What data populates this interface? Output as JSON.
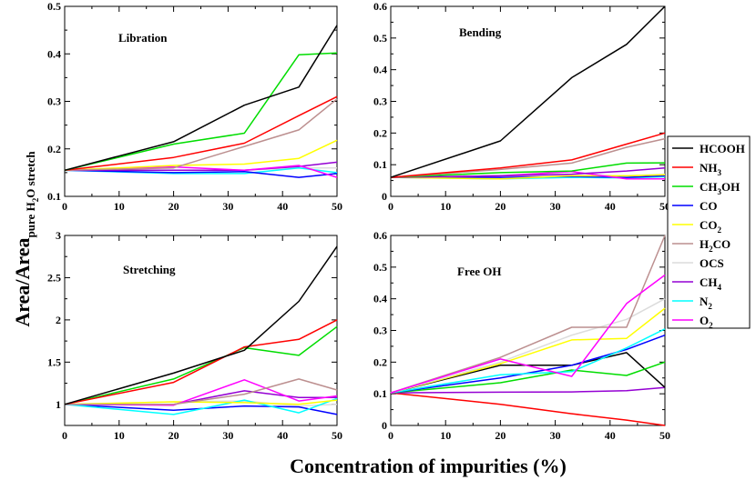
{
  "chart_data": {
    "type": "line",
    "xlabel": "Concentration of impurities  (%)",
    "ylabel": {
      "main": "Area/Area",
      "sub_a": "pure H",
      "sub_b": "2",
      "sub_c": "O stretch"
    },
    "legend": {
      "placement": "right",
      "items": [
        {
          "key": "HCOOH",
          "base": "HCOOH",
          "sub": "",
          "rest": "",
          "color": "#000000"
        },
        {
          "key": "NH3",
          "base": "NH",
          "sub": "3",
          "rest": "",
          "color": "#ff0000"
        },
        {
          "key": "CH3OH",
          "base": "CH",
          "sub": "3",
          "rest": "OH",
          "color": "#00dd00"
        },
        {
          "key": "CO",
          "base": "CO",
          "sub": "",
          "rest": "",
          "color": "#0000ff"
        },
        {
          "key": "CO2",
          "base": "CO",
          "sub": "2",
          "rest": "",
          "color": "#ffff00"
        },
        {
          "key": "H2CO",
          "base": "H",
          "sub": "2",
          "rest": "CO",
          "color": "#bc8f8f"
        },
        {
          "key": "OCS",
          "base": "OCS",
          "sub": "",
          "rest": "",
          "color": "#dcdcdc"
        },
        {
          "key": "CH4",
          "base": "CH",
          "sub": "4",
          "rest": "",
          "color": "#9400d3"
        },
        {
          "key": "N2",
          "base": "N",
          "sub": "2",
          "rest": "",
          "color": "#00ffff"
        },
        {
          "key": "O2",
          "base": "O",
          "sub": "2",
          "rest": "",
          "color": "#ff00ff"
        }
      ]
    },
    "panels": [
      {
        "title": "Libration",
        "xlim": [
          0,
          50
        ],
        "ylim": [
          0.1,
          0.5
        ],
        "xticks": [
          0,
          10,
          20,
          30,
          40,
          50
        ],
        "yticks": [
          0.1,
          0.2,
          0.3,
          0.4,
          0.5
        ],
        "ytick_labels": [
          "0.1",
          "0.2",
          "0.3",
          "0.4",
          "0.5"
        ],
        "series": [
          {
            "name": "OCS",
            "x": [
              0,
              20,
              33,
              43,
              50
            ],
            "y": [
              0.155,
              0.155,
              0.155,
              0.16,
              0.16
            ]
          },
          {
            "name": "N2",
            "x": [
              0,
              20,
              33,
              43,
              50
            ],
            "y": [
              0.155,
              0.148,
              0.148,
              0.16,
              0.15
            ]
          },
          {
            "name": "CO",
            "x": [
              0,
              20,
              33,
              43,
              50
            ],
            "y": [
              0.155,
              0.15,
              0.152,
              0.14,
              0.148
            ]
          },
          {
            "name": "CH4",
            "x": [
              0,
              20,
              33,
              43,
              50
            ],
            "y": [
              0.155,
              0.155,
              0.155,
              0.163,
              0.172
            ]
          },
          {
            "name": "O2",
            "x": [
              0,
              20,
              33,
              43,
              50
            ],
            "y": [
              0.155,
              0.162,
              0.155,
              0.165,
              0.14
            ]
          },
          {
            "name": "CO2",
            "x": [
              0,
              20,
              33,
              43,
              50
            ],
            "y": [
              0.155,
              0.165,
              0.168,
              0.18,
              0.218
            ]
          },
          {
            "name": "H2CO",
            "x": [
              0,
              20,
              33,
              43,
              50
            ],
            "y": [
              0.155,
              0.16,
              0.205,
              0.24,
              0.305
            ]
          },
          {
            "name": "NH3",
            "x": [
              0,
              20,
              33,
              43,
              50
            ],
            "y": [
              0.155,
              0.182,
              0.212,
              0.27,
              0.31
            ]
          },
          {
            "name": "CH3OH",
            "x": [
              0,
              20,
              33,
              43,
              50
            ],
            "y": [
              0.155,
              0.21,
              0.233,
              0.398,
              0.402
            ]
          },
          {
            "name": "HCOOH",
            "x": [
              0,
              20,
              33,
              43,
              50
            ],
            "y": [
              0.155,
              0.215,
              0.292,
              0.33,
              0.46
            ]
          }
        ]
      },
      {
        "title": "Bending",
        "xlim": [
          0,
          50
        ],
        "ylim": [
          0,
          0.6
        ],
        "xticks": [
          0,
          10,
          20,
          30,
          40,
          50
        ],
        "yticks": [
          0,
          0.1,
          0.2,
          0.3,
          0.4,
          0.5,
          0.6
        ],
        "ytick_labels": [
          "0",
          "0.1",
          "0.2",
          "0.3",
          "0.4",
          "0.5",
          "0.6"
        ],
        "series": [
          {
            "name": "N2",
            "x": [
              0,
              20,
              33,
              43,
              50
            ],
            "y": [
              0.06,
              0.055,
              0.06,
              0.058,
              0.062
            ]
          },
          {
            "name": "CO",
            "x": [
              0,
              20,
              33,
              43,
              50
            ],
            "y": [
              0.06,
              0.06,
              0.063,
              0.06,
              0.065
            ]
          },
          {
            "name": "OCS",
            "x": [
              0,
              20,
              33,
              43,
              50
            ],
            "y": [
              0.06,
              0.065,
              0.065,
              0.065,
              0.07
            ]
          },
          {
            "name": "CO2",
            "x": [
              0,
              20,
              33,
              43,
              50
            ],
            "y": [
              0.06,
              0.055,
              0.065,
              0.065,
              0.068
            ]
          },
          {
            "name": "O2",
            "x": [
              0,
              20,
              33,
              43,
              50
            ],
            "y": [
              0.06,
              0.065,
              0.078,
              0.055,
              0.055
            ]
          },
          {
            "name": "CH4",
            "x": [
              0,
              20,
              33,
              43,
              50
            ],
            "y": [
              0.06,
              0.065,
              0.07,
              0.08,
              0.09
            ]
          },
          {
            "name": "CH3OH",
            "x": [
              0,
              20,
              33,
              43,
              50
            ],
            "y": [
              0.06,
              0.075,
              0.08,
              0.105,
              0.106
            ]
          },
          {
            "name": "H2CO",
            "x": [
              0,
              20,
              33,
              43,
              50
            ],
            "y": [
              0.06,
              0.085,
              0.105,
              0.155,
              0.182
            ]
          },
          {
            "name": "NH3",
            "x": [
              0,
              20,
              33,
              43,
              50
            ],
            "y": [
              0.06,
              0.09,
              0.115,
              0.165,
              0.2
            ]
          },
          {
            "name": "HCOOH",
            "x": [
              0,
              20,
              33,
              43,
              50
            ],
            "y": [
              0.06,
              0.175,
              0.375,
              0.48,
              0.6
            ]
          }
        ]
      },
      {
        "title": "Stretching",
        "xlim": [
          0,
          50
        ],
        "ylim": [
          0.75,
          3
        ],
        "xticks": [
          0,
          10,
          20,
          30,
          40,
          50
        ],
        "yticks": [
          1,
          1.5,
          2,
          2.5,
          3
        ],
        "ytick_labels": [
          "1",
          "1.5",
          "2",
          "2.5",
          "3"
        ],
        "series": [
          {
            "name": "OCS",
            "x": [
              0,
              20,
              33,
              43,
              50
            ],
            "y": [
              1,
              1.03,
              1.04,
              0.98,
              1.0
            ]
          },
          {
            "name": "CO",
            "x": [
              0,
              20,
              33,
              43,
              50
            ],
            "y": [
              1,
              0.93,
              0.98,
              0.97,
              0.88
            ]
          },
          {
            "name": "N2",
            "x": [
              0,
              20,
              33,
              43,
              50
            ],
            "y": [
              1,
              0.88,
              1.05,
              0.9,
              1.07
            ]
          },
          {
            "name": "CO2",
            "x": [
              0,
              20,
              33,
              43,
              50
            ],
            "y": [
              1,
              1.03,
              1.02,
              1.0,
              1.05
            ]
          },
          {
            "name": "CH4",
            "x": [
              0,
              20,
              33,
              43,
              50
            ],
            "y": [
              1,
              1.0,
              1.16,
              1.08,
              1.08
            ]
          },
          {
            "name": "O2",
            "x": [
              0,
              20,
              33,
              43,
              50
            ],
            "y": [
              1,
              0.99,
              1.29,
              1.04,
              1.1
            ]
          },
          {
            "name": "H2CO",
            "x": [
              0,
              20,
              33,
              43,
              50
            ],
            "y": [
              1,
              1.0,
              1.12,
              1.3,
              1.17
            ]
          },
          {
            "name": "CH3OH",
            "x": [
              0,
              20,
              33,
              43,
              50
            ],
            "y": [
              1,
              1.3,
              1.67,
              1.58,
              1.92
            ]
          },
          {
            "name": "NH3",
            "x": [
              0,
              20,
              33,
              43,
              50
            ],
            "y": [
              1,
              1.26,
              1.68,
              1.77,
              2.0
            ]
          },
          {
            "name": "HCOOH",
            "x": [
              0,
              20,
              33,
              43,
              50
            ],
            "y": [
              1,
              1.37,
              1.64,
              2.22,
              2.87
            ]
          }
        ]
      },
      {
        "title": "Free OH",
        "xlim": [
          0,
          50
        ],
        "ylim": [
          0,
          0.6
        ],
        "xticks": [
          0,
          10,
          20,
          30,
          40,
          50
        ],
        "yticks": [
          0,
          0.1,
          0.2,
          0.3,
          0.4,
          0.5,
          0.6
        ],
        "ytick_labels": [
          "0",
          "0.1",
          "0.2",
          "0.3",
          "0.4",
          "0.5",
          "0.6"
        ],
        "series": [
          {
            "name": "NH3",
            "x": [
              0,
              20,
              33,
              43,
              50
            ],
            "y": [
              0.103,
              0.067,
              0.037,
              0.017,
              0.0
            ]
          },
          {
            "name": "CH4",
            "x": [
              0,
              20,
              33,
              43,
              50
            ],
            "y": [
              0.103,
              0.105,
              0.106,
              0.11,
              0.12
            ]
          },
          {
            "name": "HCOOH",
            "x": [
              0,
              20,
              33,
              43,
              50
            ],
            "y": [
              0.103,
              0.19,
              0.19,
              0.23,
              0.12
            ]
          },
          {
            "name": "CH3OH",
            "x": [
              0,
              20,
              33,
              43,
              50
            ],
            "y": [
              0.103,
              0.135,
              0.175,
              0.158,
              0.2
            ]
          },
          {
            "name": "CO",
            "x": [
              0,
              20,
              33,
              43,
              50
            ],
            "y": [
              0.103,
              0.15,
              0.19,
              0.24,
              0.285
            ]
          },
          {
            "name": "N2",
            "x": [
              0,
              20,
              33,
              43,
              50
            ],
            "y": [
              0.103,
              0.16,
              0.17,
              0.245,
              0.305
            ]
          },
          {
            "name": "CO2",
            "x": [
              0,
              20,
              33,
              43,
              50
            ],
            "y": [
              0.103,
              0.195,
              0.27,
              0.275,
              0.37
            ]
          },
          {
            "name": "OCS",
            "x": [
              0,
              20,
              33,
              43,
              50
            ],
            "y": [
              0.103,
              0.2,
              0.285,
              0.335,
              0.4
            ]
          },
          {
            "name": "H2CO",
            "x": [
              0,
              20,
              33,
              43,
              50
            ],
            "y": [
              0.103,
              0.215,
              0.31,
              0.31,
              0.6
            ]
          },
          {
            "name": "O2",
            "x": [
              0,
              20,
              33,
              43,
              50
            ],
            "y": [
              0.103,
              0.21,
              0.155,
              0.385,
              0.475
            ]
          }
        ]
      }
    ]
  }
}
